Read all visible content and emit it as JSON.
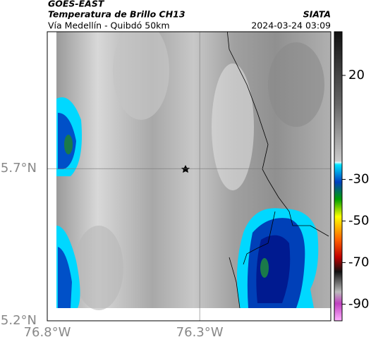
{
  "header": {
    "source": "GOES-EAST",
    "title": "Temperatura de Brillo CH13",
    "location": "Vía Medellín - Quibdó 50km",
    "org": "SIATA",
    "datetime": "2024-03-24 03:09"
  },
  "map": {
    "xlim": [
      -76.8,
      -75.87
    ],
    "ylim": [
      5.2,
      6.15
    ],
    "xticks": [
      {
        "value": -76.8,
        "label": "76.8°W"
      },
      {
        "value": -76.3,
        "label": "76.3°W"
      }
    ],
    "yticks": [
      {
        "value": 5.2,
        "label": "5.2°N"
      },
      {
        "value": 5.7,
        "label": "5.7°N"
      }
    ],
    "grid": true
  },
  "colorbar": {
    "lim": [
      -98,
      41
    ],
    "ticks": [
      20,
      -30,
      -50,
      -70,
      -90
    ]
  }
}
